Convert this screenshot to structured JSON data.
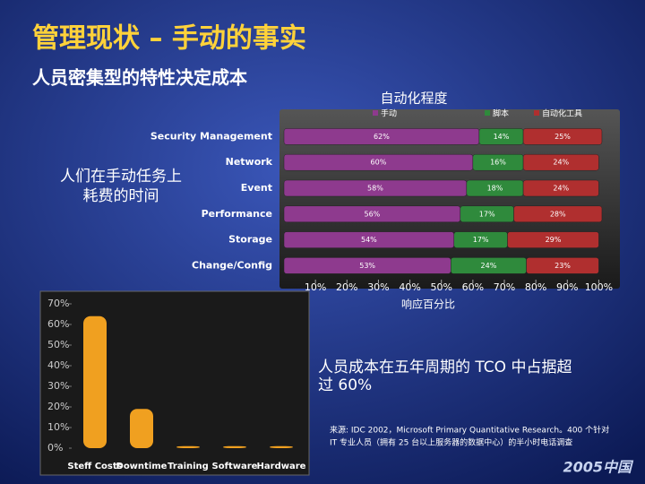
{
  "slide": {
    "title": "管理现状 – 手动的事实",
    "subtitle": "人员密集型的特性决定成本",
    "side_note": [
      "人们在手动任务上",
      "耗费的时间"
    ],
    "note": [
      "人员成本在五年周期的 TCO 中占据超",
      "过 60%"
    ],
    "source": [
      "来源: IDC 2002，Microsoft Primary Quantitative Research。400 个针对",
      "IT 专业人员（拥有 25 台以上服务器的数据中心）的半小时电话调查"
    ],
    "logo": "2005中国"
  },
  "chart_data": [
    {
      "type": "bar",
      "orientation": "horizontal",
      "stacked": true,
      "legend_title": "自动化程度",
      "x_label": "响应百分比",
      "categories": [
        "Security Management",
        "Network",
        "Event",
        "Performance",
        "Storage",
        "Change/Config"
      ],
      "series": [
        {
          "name": "手动",
          "color": "#8e3a8e",
          "values": [
            62,
            60,
            58,
            56,
            54,
            53
          ],
          "value_labels": [
            "62%",
            "60%",
            "58%",
            "56%",
            "54%",
            "53%"
          ]
        },
        {
          "name": "脚本",
          "color": "#2f8a3c",
          "values": [
            14,
            16,
            18,
            17,
            17,
            24
          ],
          "value_labels": [
            "14%",
            "16%",
            "18%",
            "17%",
            "17%",
            "24%"
          ]
        },
        {
          "name": "自动化工具",
          "color": "#b02f2f",
          "values": [
            25,
            24,
            24,
            28,
            29,
            23
          ],
          "value_labels": [
            "25%",
            "24%",
            "24%",
            "28%",
            "29%",
            "23%"
          ]
        }
      ],
      "xlim": [
        0,
        105
      ],
      "xticks": [
        {
          "value": 10,
          "label": "10%"
        },
        {
          "value": 20,
          "label": "20%"
        },
        {
          "value": 30,
          "label": "30%"
        },
        {
          "value": 40,
          "label": "40%"
        },
        {
          "value": 50,
          "label": "50%"
        },
        {
          "value": 60,
          "label": "60%"
        },
        {
          "value": 70,
          "label": "70%"
        },
        {
          "value": 80,
          "label": "80%"
        },
        {
          "value": 90,
          "label": "90%"
        },
        {
          "value": 100,
          "label": "100%"
        }
      ]
    },
    {
      "type": "bar",
      "orientation": "vertical",
      "color": "#f0a020",
      "categories": [
        "Steff Costs",
        "Downtime",
        "Training",
        "Software",
        "Hardware"
      ],
      "values": [
        64,
        19,
        1,
        1,
        1
      ],
      "ylim": [
        0,
        70
      ],
      "yticks": [
        {
          "value": 0,
          "label": "0%"
        },
        {
          "value": 10,
          "label": "10%"
        },
        {
          "value": 20,
          "label": "20%"
        },
        {
          "value": 30,
          "label": "30%"
        },
        {
          "value": 40,
          "label": "40%"
        },
        {
          "value": 50,
          "label": "50%"
        },
        {
          "value": 60,
          "label": "60%"
        },
        {
          "value": 70,
          "label": "70%"
        }
      ]
    }
  ]
}
